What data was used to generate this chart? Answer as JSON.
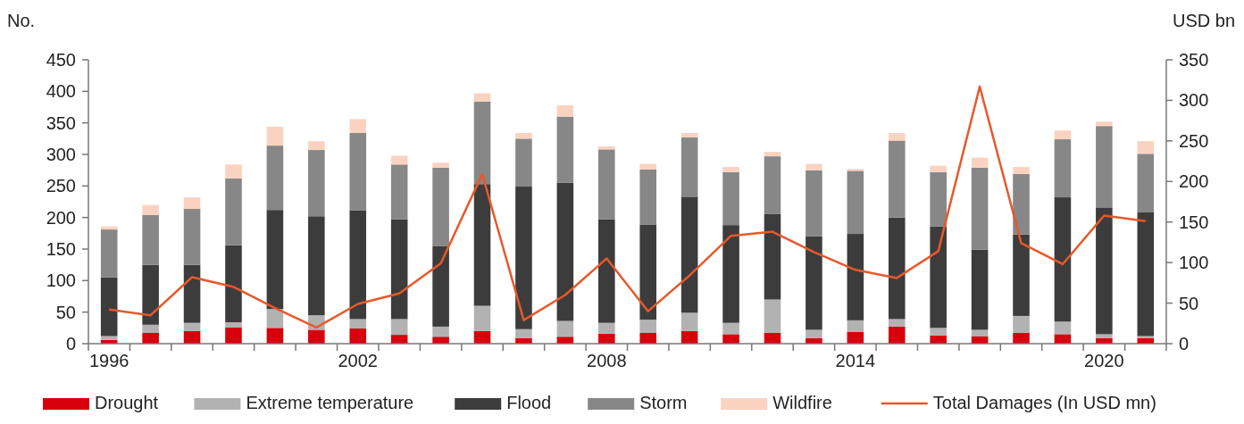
{
  "chart_data": {
    "type": "bar",
    "stacked": true,
    "categories": [
      "1996",
      null,
      null,
      null,
      null,
      null,
      "2002",
      null,
      null,
      null,
      null,
      null,
      "2008",
      null,
      null,
      null,
      null,
      null,
      "2014",
      null,
      null,
      null,
      null,
      null,
      "2020",
      null
    ],
    "ylabel": "No.",
    "y2label": "USD bn",
    "ylim": [
      0,
      450
    ],
    "yticks": [
      0,
      50,
      100,
      150,
      200,
      250,
      300,
      350,
      400,
      450
    ],
    "y2lim": [
      0,
      350
    ],
    "y2ticks": [
      0,
      50,
      100,
      150,
      200,
      250,
      300,
      350
    ],
    "legend": "bottom",
    "series": [
      {
        "name": "Drought",
        "color": "#d9000d",
        "values": [
          6,
          17,
          20,
          26,
          25,
          22,
          24,
          14,
          11,
          20,
          9,
          11,
          16,
          17,
          20,
          15,
          17,
          9,
          19,
          27,
          13,
          12,
          17,
          15,
          9,
          9
        ]
      },
      {
        "name": "Extreme temperature",
        "color": "#b2b2b2",
        "values": [
          6,
          13,
          13,
          8,
          30,
          23,
          15,
          25,
          16,
          40,
          14,
          25,
          17,
          21,
          29,
          18,
          53,
          13,
          18,
          12,
          12,
          10,
          27,
          20,
          6,
          3
        ]
      },
      {
        "name": "Flood",
        "color": "#3c3c3c",
        "values": [
          93,
          95,
          92,
          122,
          157,
          157,
          172,
          158,
          128,
          193,
          226,
          219,
          164,
          151,
          184,
          155,
          136,
          148,
          137,
          161,
          161,
          127,
          129,
          197,
          201,
          196
        ]
      },
      {
        "name": "Storm",
        "color": "#878787",
        "values": [
          76,
          79,
          89,
          106,
          102,
          105,
          123,
          87,
          124,
          131,
          76,
          105,
          111,
          87,
          94,
          84,
          91,
          105,
          100,
          122,
          86,
          130,
          96,
          92,
          129,
          93
        ]
      },
      {
        "name": "Wildfire",
        "color": "#fad3c0",
        "values": [
          5,
          16,
          18,
          22,
          30,
          14,
          22,
          14,
          8,
          13,
          9,
          18,
          5,
          9,
          7,
          8,
          7,
          10,
          3,
          12,
          10,
          16,
          11,
          14,
          7,
          20
        ]
      },
      {
        "name": "Total Damages (In USD mn)",
        "type": "line",
        "axis": "y2",
        "color": "#e8582a",
        "values": [
          42,
          35,
          82,
          70,
          44,
          20,
          49,
          62,
          99,
          209,
          29,
          60,
          105,
          40,
          84,
          133,
          138,
          113,
          91,
          81,
          114,
          317,
          124,
          98,
          158,
          151
        ]
      }
    ]
  }
}
